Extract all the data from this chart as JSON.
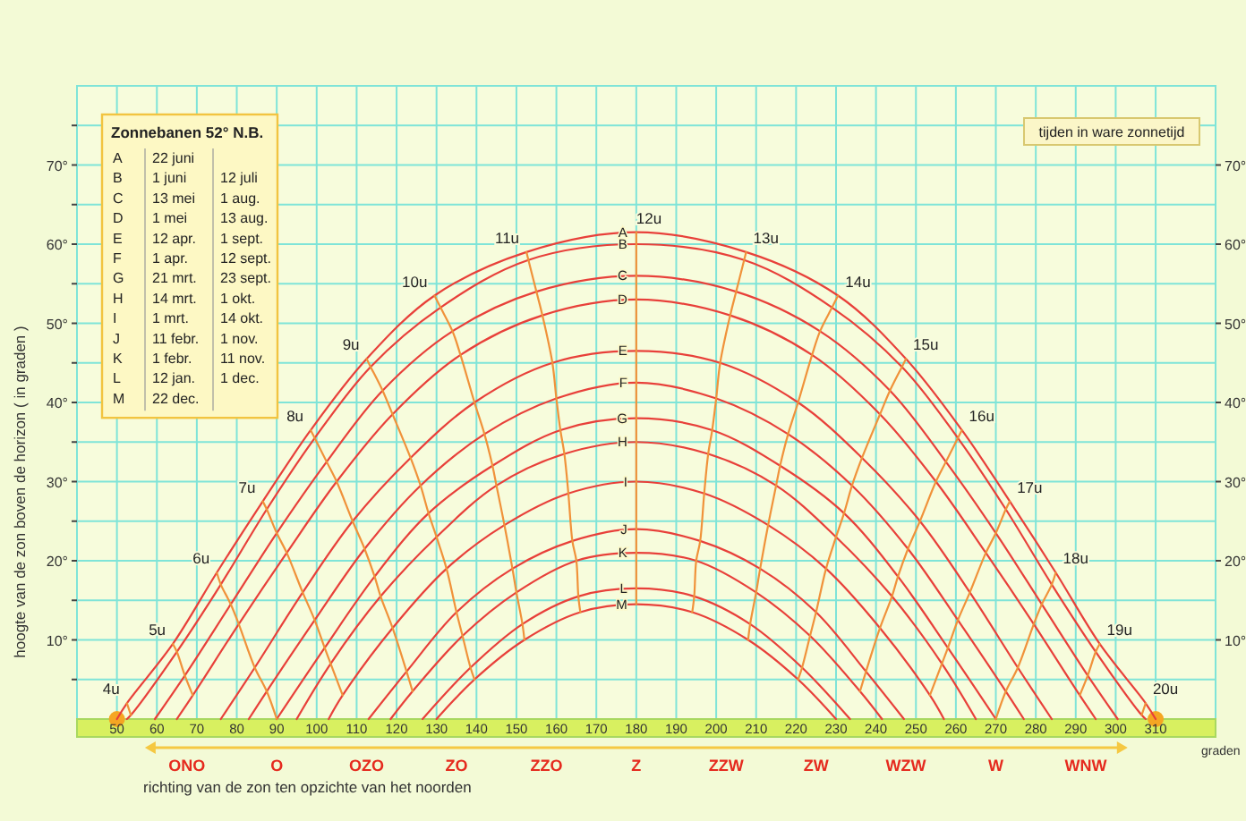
{
  "chart_data": {
    "type": "line",
    "ylabel": "hoogte van de zon boven de horizon ( in graden )",
    "xlabel": "graden",
    "x2label": "richting van de zon ten opzichte van het noorden",
    "legend_title": "Zonnebanen 52° N.B.",
    "annotations": [
      "tijden in ware zonnetijd",
      "A\t22 juni",
      "B\t1 juni\t12 juli",
      "C\t13 mei\t1 aug.",
      "D\t1 mei\t13 aug.",
      "E\t12 apr.\t1 sept.",
      "F\t1 apr.\t12 sept.",
      "G\t21 mrt.\t23 sept.",
      "H\t14 mrt.\t1 okt.",
      "I\t1 mrt.\t14 okt.",
      "J\t11 febr.\t1 nov.",
      "K\t1 febr.\t11 nov.",
      "L\t12 jan.\t1 dec.",
      "M\t22 dec.",
      "ONO",
      "O",
      "OZO",
      "ZO",
      "ZZO",
      "Z",
      "ZZW",
      "ZW",
      "WZW",
      "W",
      "WNW"
    ],
    "xlim": [
      40,
      325
    ],
    "xticks": [
      50,
      60,
      70,
      80,
      90,
      100,
      110,
      120,
      130,
      140,
      150,
      160,
      170,
      180,
      190,
      200,
      210,
      220,
      230,
      240,
      250,
      260,
      270,
      280,
      290,
      300,
      310
    ],
    "ylim": [
      0,
      80
    ],
    "yticks": [
      {
        "value": 5,
        "label": null
      },
      {
        "value": 10,
        "label": "10°"
      },
      {
        "value": 15,
        "label": null
      },
      {
        "value": 20,
        "label": "20°"
      },
      {
        "value": 25,
        "label": null
      },
      {
        "value": 30,
        "label": "30°"
      },
      {
        "value": 35,
        "label": null
      },
      {
        "value": 40,
        "label": "40°"
      },
      {
        "value": 45,
        "label": null
      },
      {
        "value": 50,
        "label": "50°"
      },
      {
        "value": 55,
        "label": null
      },
      {
        "value": 60,
        "label": "60°"
      },
      {
        "value": 65,
        "label": null
      },
      {
        "value": 70,
        "label": "70°"
      },
      {
        "value": 75,
        "label": null
      }
    ],
    "y2lim": [
      0,
      80
    ],
    "y2ticks": [
      {
        "value": 10,
        "label": "10°"
      },
      {
        "value": 20,
        "label": "20°"
      },
      {
        "value": 30,
        "label": "30°"
      },
      {
        "value": 40,
        "label": "40°"
      },
      {
        "value": 50,
        "label": "50°"
      },
      {
        "value": 60,
        "label": "60°"
      },
      {
        "value": 70,
        "label": "70°"
      }
    ],
    "grid": true,
    "series": [
      {
        "name": "A",
        "color": "#e8403a",
        "x": [
          50,
          52.5,
          64,
          75,
          86.5,
          98.5,
          112.5,
          129.5,
          152.5,
          180,
          207.5,
          230.5,
          247.5,
          261.5,
          273.5,
          285,
          296,
          307.5,
          310
        ],
        "values": [
          0,
          2,
          9.5,
          18.5,
          27.5,
          36.5,
          45.5,
          53.5,
          59,
          61.5,
          59,
          53.5,
          45.5,
          36.5,
          27.5,
          18.5,
          9.5,
          2,
          0
        ]
      },
      {
        "name": "B",
        "color": "#e8403a",
        "x": [
          52.5,
          53.5,
          65,
          76,
          87.5,
          99.5,
          113.5,
          131,
          153,
          180,
          207,
          229,
          246.5,
          260.5,
          272.5,
          284,
          295,
          306.5,
          307.5
        ],
        "values": [
          0,
          0.5,
          8.5,
          17,
          26.5,
          35.5,
          44.5,
          52,
          58,
          60,
          58,
          52,
          44.5,
          35.5,
          26.5,
          17,
          8.5,
          0.5,
          0
        ]
      },
      {
        "name": "C",
        "color": "#e8403a",
        "x": [
          59.5,
          67,
          78.5,
          90,
          102.5,
          116.5,
          134,
          155,
          180,
          205,
          226,
          243.5,
          257.5,
          270,
          281.5,
          293,
          300.5
        ],
        "values": [
          0,
          5.5,
          14.5,
          23.5,
          32.5,
          41.5,
          49,
          54,
          56,
          54,
          49,
          41.5,
          32.5,
          23.5,
          14.5,
          5.5,
          0
        ]
      },
      {
        "name": "D",
        "color": "#e8403a",
        "x": [
          65,
          69,
          80.5,
          92.5,
          105,
          119,
          136,
          156.5,
          180,
          203.5,
          224,
          241,
          255,
          267.5,
          279.5,
          291,
          295
        ],
        "values": [
          0,
          3,
          12,
          21,
          30,
          38.5,
          46,
          51,
          53,
          51,
          46,
          38.5,
          30,
          21,
          12,
          3,
          0
        ]
      },
      {
        "name": "E",
        "color": "#e8403a",
        "x": [
          76,
          84.5,
          96.5,
          109,
          123.5,
          139.5,
          159,
          180,
          201,
          220.5,
          236.5,
          251,
          263.5,
          275.5,
          284
        ],
        "values": [
          0,
          6.5,
          16,
          25,
          33,
          40,
          45,
          46.5,
          45,
          40,
          33,
          25,
          16,
          6.5,
          0
        ]
      },
      {
        "name": "F",
        "color": "#e8403a",
        "x": [
          83,
          87.5,
          99.5,
          112,
          126,
          142,
          160,
          180,
          200,
          218,
          234,
          248,
          260.5,
          272.5,
          277
        ],
        "values": [
          0,
          3.5,
          12.5,
          21.5,
          29.5,
          36,
          40.5,
          42.5,
          40.5,
          36,
          29.5,
          21.5,
          12.5,
          3.5,
          0
        ]
      },
      {
        "name": "G",
        "color": "#e8403a",
        "x": [
          90,
          102,
          114.5,
          128,
          144,
          161,
          180,
          199,
          216,
          232,
          245.5,
          258,
          270
        ],
        "values": [
          0,
          9,
          18,
          26,
          32,
          36.5,
          38,
          36.5,
          32,
          26,
          18,
          9,
          0
        ]
      },
      {
        "name": "H",
        "color": "#e8403a",
        "x": [
          95,
          103.5,
          116,
          130,
          145,
          162,
          180,
          198,
          215,
          230,
          244,
          256.5,
          265
        ],
        "values": [
          0,
          7,
          15.5,
          23,
          29.5,
          33.5,
          35,
          33.5,
          29.5,
          23,
          15.5,
          7,
          0
        ]
      },
      {
        "name": "I",
        "color": "#e8403a",
        "x": [
          103,
          106.5,
          119,
          132.5,
          147,
          163,
          180,
          197,
          213,
          227.5,
          241,
          253.5,
          257
        ],
        "values": [
          0,
          3,
          11.5,
          19,
          24.5,
          28.5,
          30,
          28.5,
          24.5,
          19,
          11.5,
          3,
          0
        ]
      },
      {
        "name": "J",
        "color": "#e8403a",
        "x": [
          113,
          122.5,
          135,
          149,
          164,
          180,
          196,
          211,
          225,
          237.5,
          247
        ],
        "values": [
          0,
          6,
          13.5,
          19,
          22.5,
          24,
          22.5,
          19,
          13.5,
          6,
          0
        ]
      },
      {
        "name": "K",
        "color": "#e8403a",
        "x": [
          118.5,
          124,
          136.5,
          150,
          165,
          180,
          195,
          210,
          223.5,
          236,
          241.5
        ],
        "values": [
          0,
          3.5,
          10.5,
          16,
          20,
          21,
          20,
          16,
          10.5,
          3.5,
          0
        ]
      },
      {
        "name": "L",
        "color": "#e8403a",
        "x": [
          126.5,
          138.5,
          151.5,
          165.5,
          180,
          194.5,
          208.5,
          221.5,
          233.5
        ],
        "values": [
          0,
          6.5,
          12,
          15.5,
          16.5,
          15.5,
          12,
          6.5,
          0
        ]
      },
      {
        "name": "M",
        "color": "#e8403a",
        "x": [
          130,
          139.5,
          152,
          166,
          180,
          194,
          208,
          220.5,
          230
        ],
        "values": [
          0,
          5,
          10,
          13.5,
          14.5,
          13.5,
          10,
          5,
          0
        ]
      },
      {
        "name": "4u",
        "color": "#f0923a",
        "x": [
          52.5,
          53.5
        ],
        "values": [
          2,
          0.5
        ]
      },
      {
        "name": "5u",
        "color": "#f0923a",
        "x": [
          64,
          65,
          67,
          69
        ],
        "values": [
          9.5,
          8.5,
          5.5,
          3
        ]
      },
      {
        "name": "6u",
        "color": "#f0923a",
        "x": [
          75,
          76,
          78.5,
          80.5,
          84.5,
          87.5,
          90
        ],
        "values": [
          18.5,
          17,
          14.5,
          12,
          6.5,
          3.5,
          0
        ]
      },
      {
        "name": "7u",
        "color": "#f0923a",
        "x": [
          86.5,
          87.5,
          90,
          92.5,
          96.5,
          99.5,
          102,
          103.5,
          106.5
        ],
        "values": [
          27.5,
          26.5,
          23.5,
          21,
          16,
          12.5,
          9,
          7,
          3
        ]
      },
      {
        "name": "8u",
        "color": "#f0923a",
        "x": [
          98.5,
          99.5,
          102.5,
          105,
          109,
          112,
          114.5,
          116,
          119,
          122.5,
          124
        ],
        "values": [
          36.5,
          35.5,
          32.5,
          30,
          25,
          21.5,
          18,
          15.5,
          11.5,
          6,
          3.5
        ]
      },
      {
        "name": "9u",
        "color": "#f0923a",
        "x": [
          112.5,
          113.5,
          116.5,
          119,
          123.5,
          126,
          128,
          130,
          132.5,
          135,
          136.5,
          138.5,
          139.5
        ],
        "values": [
          45.5,
          44.5,
          41.5,
          38.5,
          33,
          29.5,
          26,
          23,
          19,
          13.5,
          10.5,
          6.5,
          5
        ]
      },
      {
        "name": "10u",
        "color": "#f0923a",
        "x": [
          129.5,
          131,
          134,
          136,
          139.5,
          142,
          144,
          145,
          147,
          149,
          150,
          151.5,
          152
        ],
        "values": [
          53.5,
          52,
          49,
          46,
          40,
          36,
          32,
          29.5,
          24.5,
          19,
          16,
          12,
          10
        ]
      },
      {
        "name": "11u",
        "color": "#f0923a",
        "x": [
          152.5,
          153,
          155,
          156.5,
          159,
          160,
          161,
          162,
          163,
          164,
          165,
          165.5,
          166
        ],
        "values": [
          59,
          58,
          54,
          51,
          45,
          40.5,
          36.5,
          33.5,
          28.5,
          22.5,
          20,
          15.5,
          13.5
        ]
      },
      {
        "name": "12u",
        "color": "#f0923a",
        "x": [
          180,
          180,
          180,
          180,
          180,
          180,
          180,
          180,
          180,
          180,
          180,
          180,
          180
        ],
        "values": [
          61.5,
          60,
          56,
          53,
          46.5,
          42.5,
          38,
          35,
          30,
          24,
          21,
          16.5,
          14.5
        ]
      },
      {
        "name": "13u",
        "color": "#f0923a",
        "x": [
          207.5,
          207,
          205,
          203.5,
          201,
          200,
          199,
          198,
          197,
          196,
          195,
          194.5,
          194
        ],
        "values": [
          59,
          58,
          54,
          51,
          45,
          40.5,
          36.5,
          33.5,
          28.5,
          22.5,
          20,
          15.5,
          13.5
        ]
      },
      {
        "name": "14u",
        "color": "#f0923a",
        "x": [
          230.5,
          229,
          226,
          224,
          220.5,
          218,
          216,
          215,
          213,
          211,
          210,
          208.5,
          208
        ],
        "values": [
          53.5,
          52,
          49,
          46,
          40,
          36,
          32,
          29.5,
          24.5,
          19,
          16,
          12,
          10
        ]
      },
      {
        "name": "15u",
        "color": "#f0923a",
        "x": [
          247.5,
          246.5,
          243.5,
          241,
          236.5,
          234,
          232,
          230,
          227.5,
          225,
          223.5,
          221.5,
          220.5
        ],
        "values": [
          45.5,
          44.5,
          41.5,
          38.5,
          33,
          29.5,
          26,
          23,
          19,
          13.5,
          10.5,
          6.5,
          5
        ]
      },
      {
        "name": "16u",
        "color": "#f0923a",
        "x": [
          261.5,
          260.5,
          257.5,
          255,
          251,
          248,
          245.5,
          244,
          241,
          237.5,
          236
        ],
        "values": [
          36.5,
          35.5,
          32.5,
          30,
          25,
          21.5,
          18,
          15.5,
          11.5,
          6,
          3.5
        ]
      },
      {
        "name": "17u",
        "color": "#f0923a",
        "x": [
          273.5,
          272.5,
          270,
          267.5,
          263.5,
          260.5,
          258,
          256.5,
          253.5
        ],
        "values": [
          27.5,
          26.5,
          23.5,
          21,
          16,
          12.5,
          9,
          7,
          3
        ]
      },
      {
        "name": "18u",
        "color": "#f0923a",
        "x": [
          285,
          284,
          281.5,
          279.5,
          275.5,
          272.5,
          270
        ],
        "values": [
          18.5,
          17,
          14.5,
          12,
          6.5,
          3.5,
          0
        ]
      },
      {
        "name": "19u",
        "color": "#f0923a",
        "x": [
          296,
          295,
          293,
          291
        ],
        "values": [
          9.5,
          8.5,
          5.5,
          3
        ]
      },
      {
        "name": "20u",
        "color": "#f0923a",
        "x": [
          307.5,
          306.5
        ],
        "values": [
          2,
          0.5
        ]
      },
      {
        "type": "scatter",
        "color": "#f5a623",
        "x": [
          50,
          310
        ],
        "values": [
          0,
          0
        ]
      }
    ]
  }
}
